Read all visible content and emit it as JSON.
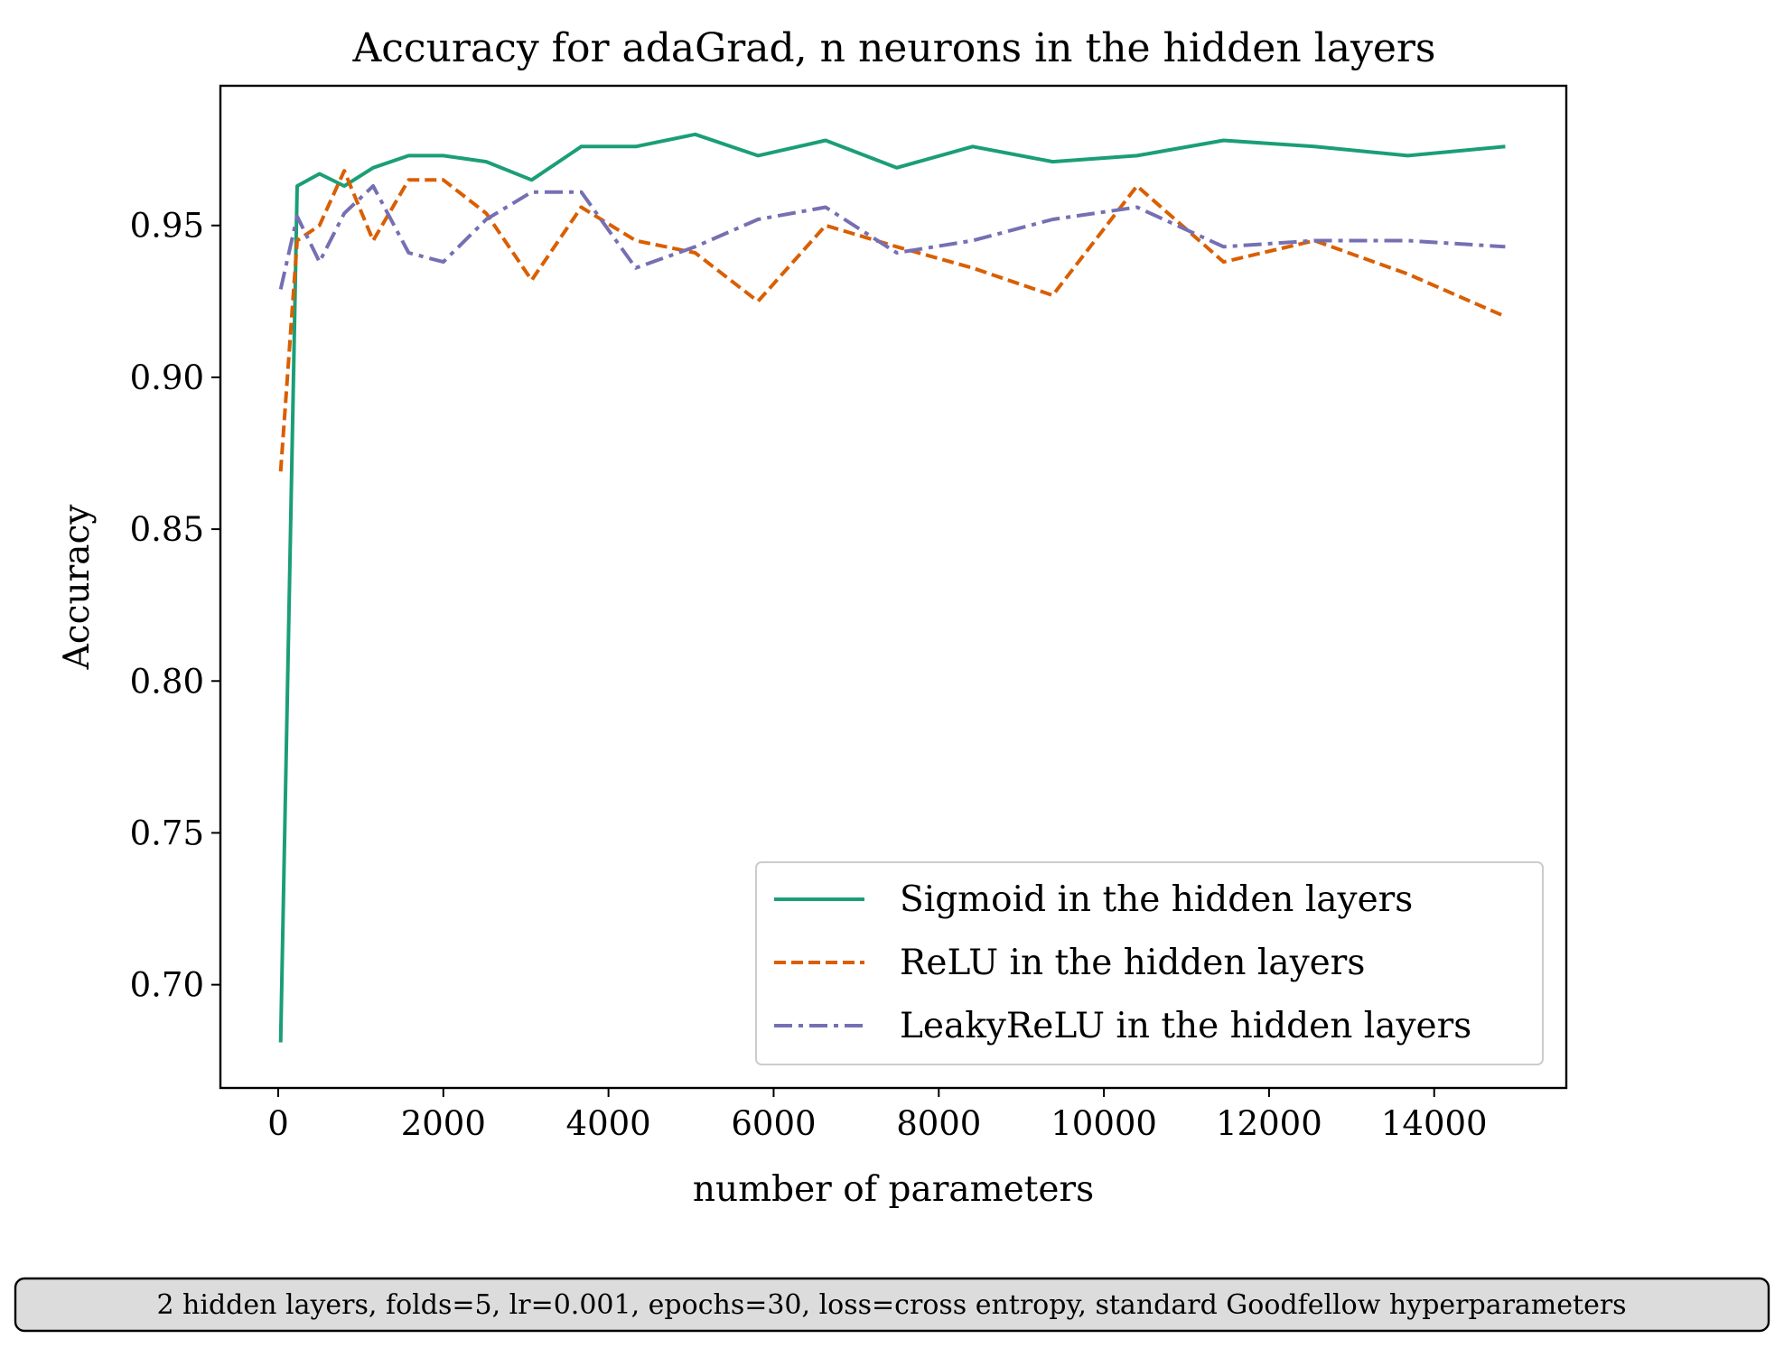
{
  "chart_data": {
    "type": "line",
    "title": "Accuracy for adaGrad, n neurons in the hidden layers",
    "xlabel": "number of parameters",
    "ylabel": "Accuracy",
    "xlim": [
      -700,
      15600
    ],
    "ylim": [
      0.666,
      0.996
    ],
    "xticks": [
      0,
      2000,
      4000,
      6000,
      8000,
      10000,
      12000,
      14000
    ],
    "xtick_labels": [
      "0",
      "2000",
      "4000",
      "6000",
      "8000",
      "10000",
      "12000",
      "14000"
    ],
    "yticks": [
      0.7,
      0.75,
      0.8,
      0.85,
      0.9,
      0.95
    ],
    "ytick_labels": [
      "0.70",
      "0.75",
      "0.80",
      "0.85",
      "0.90",
      "0.95"
    ],
    "grid": false,
    "legend_position": "lower-right",
    "series": [
      {
        "name": "Sigmoid in the hidden layers",
        "color": "#1b9e77",
        "style": "solid",
        "x": [
          30,
          230,
          500,
          800,
          1150,
          1580,
          2000,
          2520,
          3070,
          3670,
          4330,
          5050,
          5810,
          6630,
          7490,
          8410,
          9380,
          10400,
          11450,
          12550,
          13680,
          14860
        ],
        "y": [
          0.681,
          0.963,
          0.967,
          0.963,
          0.969,
          0.973,
          0.973,
          0.971,
          0.965,
          0.976,
          0.976,
          0.98,
          0.973,
          0.978,
          0.969,
          0.976,
          0.971,
          0.973,
          0.978,
          0.976,
          0.973,
          0.976
        ]
      },
      {
        "name": "ReLU in the hidden layers",
        "color": "#d95f02",
        "style": "dashed",
        "x": [
          30,
          230,
          500,
          800,
          1150,
          1580,
          2000,
          2520,
          3070,
          3670,
          4330,
          5050,
          5810,
          6630,
          7490,
          8410,
          9380,
          10400,
          11450,
          12550,
          13680,
          14860
        ],
        "y": [
          0.869,
          0.945,
          0.95,
          0.968,
          0.945,
          0.965,
          0.965,
          0.954,
          0.932,
          0.956,
          0.945,
          0.941,
          0.925,
          0.95,
          0.943,
          0.936,
          0.927,
          0.963,
          0.938,
          0.945,
          0.934,
          0.92
        ]
      },
      {
        "name": "LeakyReLU in the hidden layers",
        "color": "#7570b3",
        "style": "dashdot",
        "x": [
          30,
          230,
          500,
          800,
          1150,
          1580,
          2000,
          2520,
          3070,
          3670,
          4330,
          5050,
          5810,
          6630,
          7490,
          8410,
          9380,
          10400,
          11450,
          12550,
          13680,
          14860
        ],
        "y": [
          0.929,
          0.953,
          0.938,
          0.954,
          0.963,
          0.941,
          0.938,
          0.952,
          0.961,
          0.961,
          0.936,
          0.943,
          0.952,
          0.956,
          0.941,
          0.945,
          0.952,
          0.956,
          0.943,
          0.945,
          0.945,
          0.943
        ]
      }
    ],
    "annotation": "2 hidden layers, folds=5, lr=0.001, epochs=30, loss=cross entropy, standard Goodfellow hyperparameters"
  }
}
